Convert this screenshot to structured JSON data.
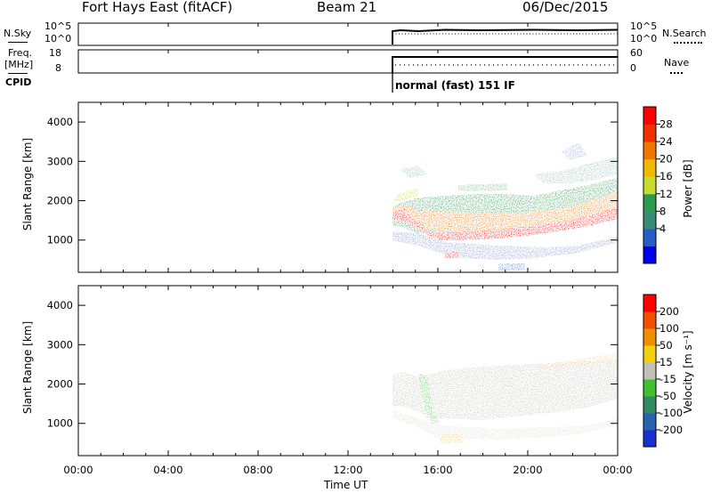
{
  "header": {
    "station": "Fort Hays East (fitACF)",
    "beam": "Beam 21",
    "date": "06/Dec/2015"
  },
  "nsky_panel": {
    "left_label": "N.Sky",
    "left_ticks": [
      "10^5",
      "10^0"
    ],
    "right_ticks": [
      "10^5",
      "10^0"
    ],
    "right_label": "N.Search"
  },
  "freq_panel": {
    "left_label_1": "Freq.",
    "left_label_2": "[MHz]",
    "left_ticks": [
      "18",
      "8"
    ],
    "right_ticks": [
      "60",
      "0"
    ],
    "right_label": "Nave"
  },
  "cpid": {
    "label": "CPID",
    "mode": "normal (fast) 151 IF"
  },
  "power_panel": {
    "ylabel": "Slant Range [km]",
    "yticks": [
      "4000",
      "3000",
      "2000",
      "1000"
    ],
    "colorbar_label": "Power [dB]",
    "colorbar_ticks": [
      "28",
      "24",
      "20",
      "16",
      "12",
      "8",
      "4"
    ],
    "colors": [
      "#0000e8",
      "#2a5cc8",
      "#3a8a78",
      "#2e9a50",
      "#c8dc30",
      "#f0b800",
      "#f07800",
      "#f03000",
      "#ff0000"
    ]
  },
  "velocity_panel": {
    "ylabel": "Slant Range [km]",
    "yticks": [
      "4000",
      "3000",
      "2000",
      "1000"
    ],
    "colorbar_label": "Velocity [m s⁻¹]",
    "colorbar_ticks": [
      "200",
      "100",
      "50",
      "15",
      "-15",
      "-50",
      "-100",
      "-200"
    ],
    "colors": [
      "#1a2fd0",
      "#2a60b0",
      "#2e8c60",
      "#40c030",
      "#c0c0b8",
      "#f0d010",
      "#f09000",
      "#f05000",
      "#ff0000"
    ]
  },
  "x_axis": {
    "label": "Time UT",
    "ticks": [
      "00:00",
      "04:00",
      "08:00",
      "12:00",
      "16:00",
      "20:00",
      "00:00"
    ]
  },
  "chart_data": {
    "type": "heatmap",
    "x_range_hours": [
      0,
      24
    ],
    "y_range_km": [
      180,
      4500
    ],
    "data_start_hour": 14.0,
    "power_band": {
      "x_hours": [
        14.0,
        14.5,
        15.0,
        15.5,
        16.0,
        17.0,
        18.0,
        19.0,
        20.0,
        21.0,
        22.0,
        23.0,
        24.0
      ],
      "lower_km": [
        1400,
        1550,
        1300,
        1050,
        950,
        950,
        1000,
        1050,
        1150,
        1300,
        1400,
        1500,
        1600
      ],
      "upper_km": [
        1850,
        1800,
        1700,
        1650,
        1500,
        1450,
        1500,
        1550,
        1600,
        1700,
        1800,
        1950,
        2050
      ],
      "peak_db": 28
    },
    "nsky_series": {
      "x_hours": [
        14.0,
        24.0
      ],
      "level": "~10^4"
    },
    "freq_series": {
      "x_hours": [
        14.0,
        24.0
      ],
      "freq_mhz": 16.5,
      "nave": 30
    }
  }
}
